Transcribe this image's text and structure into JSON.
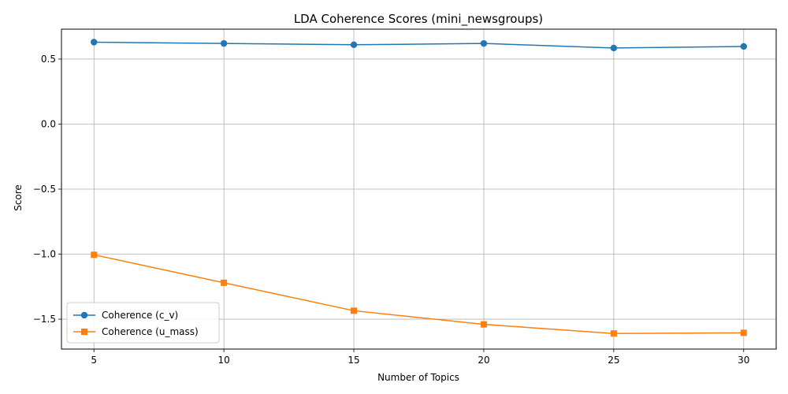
{
  "chart_data": {
    "type": "line",
    "title": "LDA Coherence Scores (mini_newsgroups)",
    "xlabel": "Number of Topics",
    "ylabel": "Score",
    "x": [
      5,
      10,
      15,
      20,
      25,
      30
    ],
    "xlim": [
      3.75,
      31.25
    ],
    "ylim": [
      -1.73,
      0.73
    ],
    "xticks": [
      5,
      10,
      15,
      20,
      25,
      30
    ],
    "xtick_labels": [
      "5",
      "10",
      "15",
      "20",
      "25",
      "30"
    ],
    "yticks": [
      -1.5,
      -1.0,
      -0.5,
      0.0,
      0.5
    ],
    "ytick_labels": [
      "−1.5",
      "−1.0",
      "−0.5",
      "0.0",
      "0.5"
    ],
    "grid": true,
    "legend_position": "lower-left",
    "series": [
      {
        "name": "Coherence (c_v)",
        "values": [
          0.63,
          0.62,
          0.61,
          0.62,
          0.585,
          0.597
        ],
        "color": "#1f77b4",
        "marker": "circle"
      },
      {
        "name": "Coherence (u_mass)",
        "values": [
          -1.005,
          -1.22,
          -1.435,
          -1.54,
          -1.61,
          -1.605
        ],
        "color": "#ff7f0e",
        "marker": "square"
      }
    ]
  }
}
